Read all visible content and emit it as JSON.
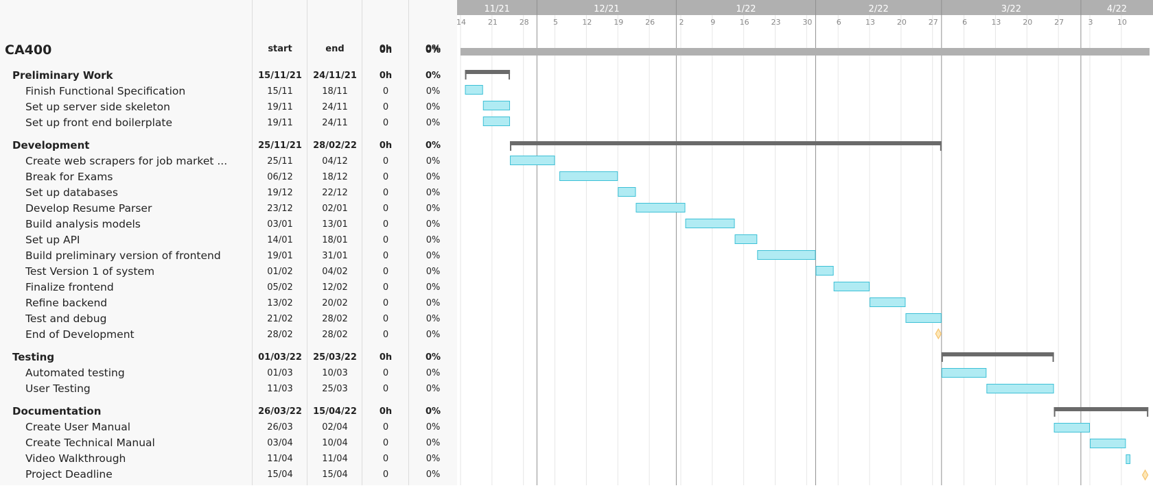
{
  "columns": {
    "start": "start",
    "end": "end",
    "hours": "0h",
    "percent": "0%"
  },
  "timeline": {
    "months": [
      {
        "label": "11/21",
        "date": "2021-11-01"
      },
      {
        "label": "12/21",
        "date": "2021-12-01"
      },
      {
        "label": "1/22",
        "date": "2022-01-01"
      },
      {
        "label": "2/22",
        "date": "2022-02-01"
      },
      {
        "label": "3/22",
        "date": "2022-03-01"
      },
      {
        "label": "4/22",
        "date": "2022-04-01"
      }
    ],
    "weeks": [
      {
        "label": "14",
        "date": "2021-11-14"
      },
      {
        "label": "21",
        "date": "2021-11-21"
      },
      {
        "label": "28",
        "date": "2021-11-28"
      },
      {
        "label": "5",
        "date": "2021-12-05"
      },
      {
        "label": "12",
        "date": "2021-12-12"
      },
      {
        "label": "19",
        "date": "2021-12-19"
      },
      {
        "label": "26",
        "date": "2021-12-26"
      },
      {
        "label": "2",
        "date": "2022-01-02"
      },
      {
        "label": "9",
        "date": "2022-01-09"
      },
      {
        "label": "16",
        "date": "2022-01-16"
      },
      {
        "label": "23",
        "date": "2022-01-23"
      },
      {
        "label": "30",
        "date": "2022-01-30"
      },
      {
        "label": "6",
        "date": "2022-02-06"
      },
      {
        "label": "13",
        "date": "2022-02-13"
      },
      {
        "label": "20",
        "date": "2022-02-20"
      },
      {
        "label": "27",
        "date": "2022-02-27"
      },
      {
        "label": "6",
        "date": "2022-03-06"
      },
      {
        "label": "13",
        "date": "2022-03-13"
      },
      {
        "label": "20",
        "date": "2022-03-20"
      },
      {
        "label": "27",
        "date": "2022-03-27"
      },
      {
        "label": "3",
        "date": "2022-04-03"
      },
      {
        "label": "10",
        "date": "2022-04-10"
      }
    ]
  },
  "colors": {
    "bar_fill": "#b0ebf3",
    "bar_stroke": "#3cc0d6",
    "summary": "#6a6a6a",
    "project": "#b0b0b0",
    "milestone": "#f5c26b",
    "header_bg": "#b0b0b0"
  },
  "rows": [
    {
      "id": "ca400",
      "level": 0,
      "name": "CA400",
      "start": "",
      "end": "",
      "hours": "0h",
      "pct": "0%",
      "type": "project",
      "from": "2021-11-14",
      "to": "2022-04-17"
    },
    {
      "id": "prelim",
      "level": 1,
      "name": "Preliminary Work",
      "start": "15/11/21",
      "end": "24/11/21",
      "hours": "0h",
      "pct": "0%",
      "type": "summary",
      "from": "2021-11-15",
      "to": "2021-11-25"
    },
    {
      "id": "t1",
      "level": 2,
      "name": "Finish Functional Specification",
      "start": "15/11",
      "end": "18/11",
      "hours": "0",
      "pct": "0%",
      "type": "task",
      "from": "2021-11-15",
      "to": "2021-11-19"
    },
    {
      "id": "t2",
      "level": 2,
      "name": "Set up server side skeleton",
      "start": "19/11",
      "end": "24/11",
      "hours": "0",
      "pct": "0%",
      "type": "task",
      "from": "2021-11-19",
      "to": "2021-11-25"
    },
    {
      "id": "t3",
      "level": 2,
      "name": "Set up front end boilerplate",
      "start": "19/11",
      "end": "24/11",
      "hours": "0",
      "pct": "0%",
      "type": "task",
      "from": "2021-11-19",
      "to": "2021-11-25"
    },
    {
      "id": "dev",
      "level": 1,
      "name": "Development",
      "start": "25/11/21",
      "end": "28/02/22",
      "hours": "0h",
      "pct": "0%",
      "type": "summary",
      "from": "2021-11-25",
      "to": "2022-03-01"
    },
    {
      "id": "t4",
      "level": 2,
      "name": "Create web scrapers for job market ...",
      "start": "25/11",
      "end": "04/12",
      "hours": "0",
      "pct": "0%",
      "type": "task",
      "from": "2021-11-25",
      "to": "2021-12-05"
    },
    {
      "id": "t5",
      "level": 2,
      "name": "Break for Exams",
      "start": "06/12",
      "end": "18/12",
      "hours": "0",
      "pct": "0%",
      "type": "task",
      "from": "2021-12-06",
      "to": "2021-12-19"
    },
    {
      "id": "t6",
      "level": 2,
      "name": "Set up databases",
      "start": "19/12",
      "end": "22/12",
      "hours": "0",
      "pct": "0%",
      "type": "task",
      "from": "2021-12-19",
      "to": "2021-12-23"
    },
    {
      "id": "t7",
      "level": 2,
      "name": "Develop Resume Parser",
      "start": "23/12",
      "end": "02/01",
      "hours": "0",
      "pct": "0%",
      "type": "task",
      "from": "2021-12-23",
      "to": "2022-01-03"
    },
    {
      "id": "t8",
      "level": 2,
      "name": "Build analysis models",
      "start": "03/01",
      "end": "13/01",
      "hours": "0",
      "pct": "0%",
      "type": "task",
      "from": "2022-01-03",
      "to": "2022-01-14"
    },
    {
      "id": "t9",
      "level": 2,
      "name": "Set up API",
      "start": "14/01",
      "end": "18/01",
      "hours": "0",
      "pct": "0%",
      "type": "task",
      "from": "2022-01-14",
      "to": "2022-01-19"
    },
    {
      "id": "t10",
      "level": 2,
      "name": "Build preliminary version of frontend",
      "start": "19/01",
      "end": "31/01",
      "hours": "0",
      "pct": "0%",
      "type": "task",
      "from": "2022-01-19",
      "to": "2022-02-01"
    },
    {
      "id": "t11",
      "level": 2,
      "name": "Test Version 1 of system",
      "start": "01/02",
      "end": "04/02",
      "hours": "0",
      "pct": "0%",
      "type": "task",
      "from": "2022-02-01",
      "to": "2022-02-05"
    },
    {
      "id": "t12",
      "level": 2,
      "name": "Finalize frontend",
      "start": "05/02",
      "end": "12/02",
      "hours": "0",
      "pct": "0%",
      "type": "task",
      "from": "2022-02-05",
      "to": "2022-02-13"
    },
    {
      "id": "t13",
      "level": 2,
      "name": "Refine backend",
      "start": "13/02",
      "end": "20/02",
      "hours": "0",
      "pct": "0%",
      "type": "task",
      "from": "2022-02-13",
      "to": "2022-02-21"
    },
    {
      "id": "t14",
      "level": 2,
      "name": "Test and debug",
      "start": "21/02",
      "end": "28/02",
      "hours": "0",
      "pct": "0%",
      "type": "task",
      "from": "2022-02-21",
      "to": "2022-03-01"
    },
    {
      "id": "m1",
      "level": 2,
      "name": "End of Development",
      "start": "28/02",
      "end": "28/02",
      "hours": "0",
      "pct": "0%",
      "type": "milestone",
      "from": "2022-02-28",
      "to": "2022-02-28"
    },
    {
      "id": "test",
      "level": 1,
      "name": "Testing",
      "start": "01/03/22",
      "end": "25/03/22",
      "hours": "0h",
      "pct": "0%",
      "type": "summary",
      "from": "2022-03-01",
      "to": "2022-03-26"
    },
    {
      "id": "t15",
      "level": 2,
      "name": "Automated testing",
      "start": "01/03",
      "end": "10/03",
      "hours": "0",
      "pct": "0%",
      "type": "task",
      "from": "2022-03-01",
      "to": "2022-03-11"
    },
    {
      "id": "t16",
      "level": 2,
      "name": "User Testing",
      "start": "11/03",
      "end": "25/03",
      "hours": "0",
      "pct": "0%",
      "type": "task",
      "from": "2022-03-11",
      "to": "2022-03-26"
    },
    {
      "id": "doc",
      "level": 1,
      "name": "Documentation",
      "start": "26/03/22",
      "end": "15/04/22",
      "hours": "0h",
      "pct": "0%",
      "type": "summary",
      "from": "2022-03-26",
      "to": "2022-04-16"
    },
    {
      "id": "t17",
      "level": 2,
      "name": "Create User Manual",
      "start": "26/03",
      "end": "02/04",
      "hours": "0",
      "pct": "0%",
      "type": "task",
      "from": "2022-03-26",
      "to": "2022-04-03"
    },
    {
      "id": "t18",
      "level": 2,
      "name": "Create Technical Manual",
      "start": "03/04",
      "end": "10/04",
      "hours": "0",
      "pct": "0%",
      "type": "task",
      "from": "2022-04-03",
      "to": "2022-04-11"
    },
    {
      "id": "t19",
      "level": 2,
      "name": "Video Walkthrough",
      "start": "11/04",
      "end": "11/04",
      "hours": "0",
      "pct": "0%",
      "type": "task",
      "from": "2022-04-11",
      "to": "2022-04-12"
    },
    {
      "id": "m2",
      "level": 2,
      "name": "Project Deadline",
      "start": "15/04",
      "end": "15/04",
      "hours": "0",
      "pct": "0%",
      "type": "milestone",
      "from": "2022-04-15",
      "to": "2022-04-15"
    }
  ]
}
